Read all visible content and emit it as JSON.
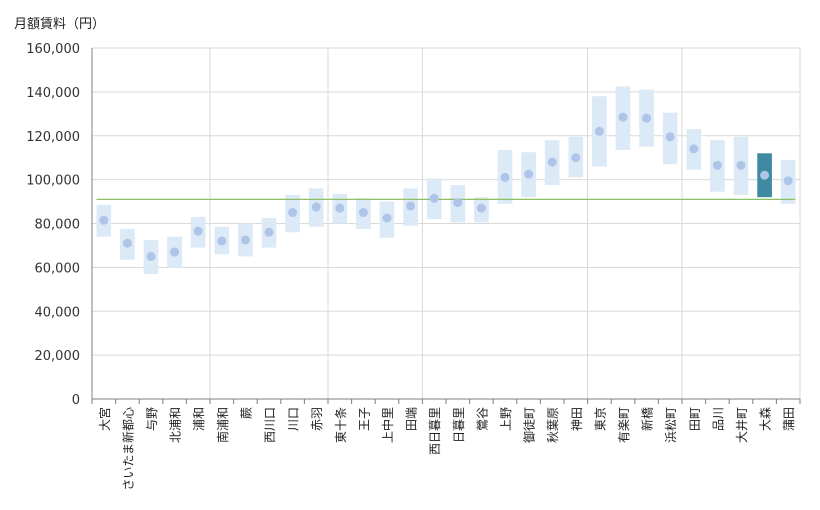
{
  "chart_data": {
    "type": "range-dot",
    "ylabel": "月額賃料（円）",
    "ylim": [
      0,
      160000
    ],
    "yticks": [
      0,
      20000,
      40000,
      60000,
      80000,
      100000,
      120000,
      140000,
      160000
    ],
    "ytick_labels": [
      "0",
      "20,000",
      "40,000",
      "60,000",
      "80,000",
      "100,000",
      "120,000",
      "140,000",
      "160,000"
    ],
    "reference_line": 91000,
    "highlight": "大森",
    "group_dividers_after": [
      "浦和",
      "赤羽",
      "田端",
      "神田",
      "浜松町"
    ],
    "categories": [
      "大宮",
      "さいたま新都心",
      "与野",
      "北浦和",
      "浦和",
      "南浦和",
      "蕨",
      "西川口",
      "川口",
      "赤羽",
      "東十条",
      "王子",
      "上中里",
      "田端",
      "西日暮里",
      "日暮里",
      "鶯谷",
      "上野",
      "御徒町",
      "秋葉原",
      "神田",
      "東京",
      "有楽町",
      "新橋",
      "浜松町",
      "田町",
      "品川",
      "大井町",
      "大森",
      "蒲田"
    ],
    "series": [
      {
        "name": "low",
        "values": [
          74000,
          63500,
          57000,
          60000,
          69000,
          66000,
          65000,
          69000,
          76000,
          78500,
          80000,
          77500,
          73500,
          79000,
          82000,
          80500,
          80500,
          89000,
          92000,
          97500,
          101000,
          106000,
          113500,
          115000,
          107000,
          104500,
          94500,
          93000,
          92000,
          89000
        ]
      },
      {
        "name": "mid",
        "values": [
          81500,
          71000,
          65000,
          67000,
          76500,
          72000,
          72500,
          76000,
          85000,
          87500,
          87000,
          85000,
          82500,
          88000,
          91500,
          89500,
          87000,
          101000,
          102500,
          108000,
          110000,
          122000,
          128500,
          128000,
          119500,
          114000,
          106500,
          106500,
          102000,
          99500
        ]
      },
      {
        "name": "high",
        "values": [
          88500,
          77500,
          72500,
          74000,
          83000,
          78500,
          80000,
          82500,
          93000,
          96000,
          93500,
          91500,
          90000,
          96000,
          100500,
          97500,
          92000,
          113500,
          112500,
          118000,
          119500,
          138000,
          142500,
          141000,
          130500,
          123000,
          118000,
          119500,
          112000,
          109000
        ]
      }
    ],
    "colors": {
      "range": "#dce9f6",
      "range_highlight": "#3f8aa0",
      "dot": "#aec4e8",
      "refline": "#8dc063",
      "grid": "#d9d9d9",
      "axis": "#7f7f7f"
    }
  }
}
